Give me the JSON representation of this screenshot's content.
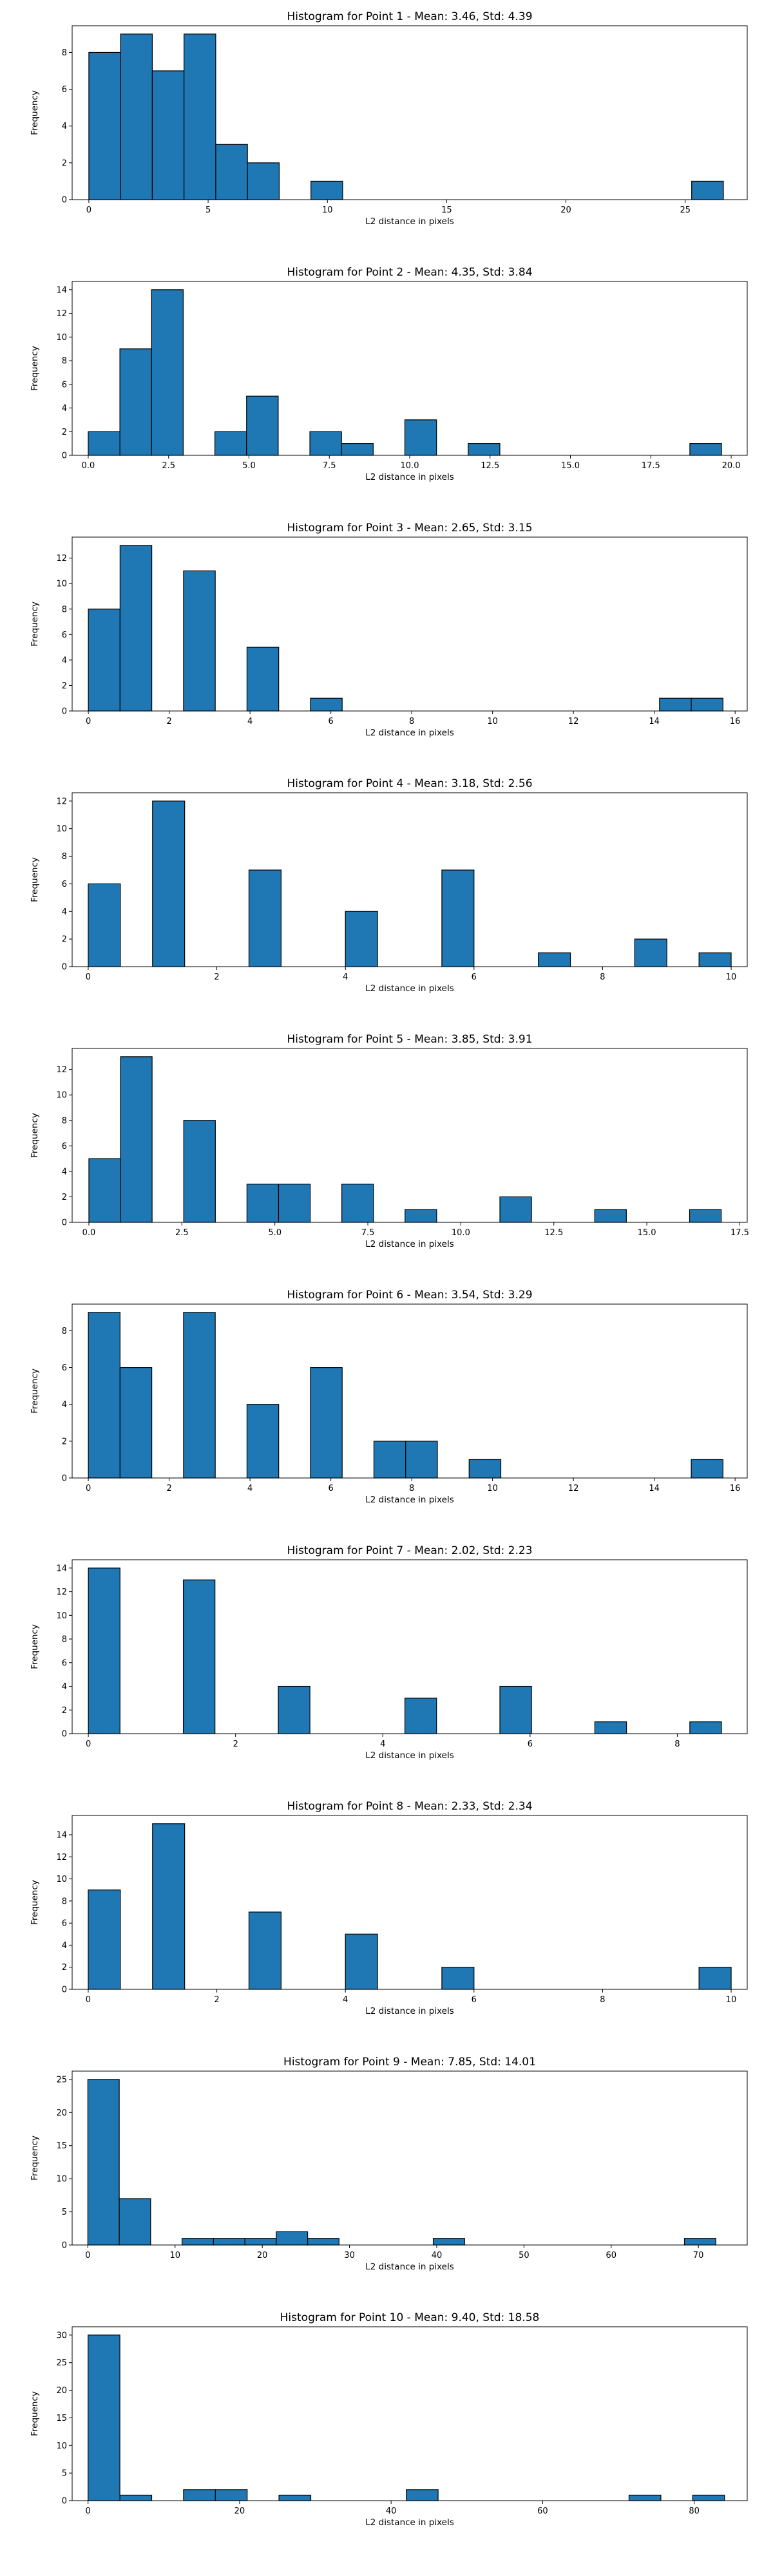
{
  "chart_data": [
    {
      "type": "bar",
      "title": "Histogram for Point 1 - Mean: 3.46, Std: 4.39",
      "xlabel": "L2 distance in pixels",
      "ylabel": "Frequency",
      "xlim": [
        -0.7,
        27.6
      ],
      "ylim": [
        0,
        9.45
      ],
      "xticks": [
        0,
        5,
        10,
        15,
        20,
        25
      ],
      "xtick_labels": [
        "0",
        "5",
        "10",
        "15",
        "20",
        "25"
      ],
      "yticks": [
        0,
        2,
        4,
        6,
        8
      ],
      "bar_width": 1.33,
      "bars": [
        {
          "x": 0.0,
          "count": 8
        },
        {
          "x": 1.33,
          "count": 9
        },
        {
          "x": 2.66,
          "count": 7
        },
        {
          "x": 3.99,
          "count": 9
        },
        {
          "x": 5.32,
          "count": 3
        },
        {
          "x": 6.65,
          "count": 2
        },
        {
          "x": 9.31,
          "count": 1
        },
        {
          "x": 25.27,
          "count": 1
        }
      ]
    },
    {
      "type": "bar",
      "title": "Histogram for Point 2 - Mean: 4.35, Std: 3.84",
      "xlabel": "L2 distance in pixels",
      "ylabel": "Frequency",
      "xlim": [
        -0.5,
        20.5
      ],
      "ylim": [
        0,
        14.7
      ],
      "xticks": [
        0,
        2.5,
        5,
        7.5,
        10,
        12.5,
        15,
        17.5,
        20
      ],
      "xtick_labels": [
        "0.0",
        "2.5",
        "5.0",
        "7.5",
        "10.0",
        "12.5",
        "15.0",
        "17.5",
        "20.0"
      ],
      "yticks": [
        0,
        2,
        4,
        6,
        8,
        10,
        12,
        14
      ],
      "bar_width": 0.985,
      "bars": [
        {
          "x": 0.0,
          "count": 2
        },
        {
          "x": 0.985,
          "count": 9
        },
        {
          "x": 1.97,
          "count": 14
        },
        {
          "x": 3.94,
          "count": 2
        },
        {
          "x": 4.925,
          "count": 5
        },
        {
          "x": 6.895,
          "count": 2
        },
        {
          "x": 7.88,
          "count": 1
        },
        {
          "x": 9.85,
          "count": 3
        },
        {
          "x": 11.82,
          "count": 1
        },
        {
          "x": 18.715,
          "count": 1
        }
      ]
    },
    {
      "type": "bar",
      "title": "Histogram for Point 3 - Mean: 2.65, Std: 3.15",
      "xlabel": "L2 distance in pixels",
      "ylabel": "Frequency",
      "xlim": [
        -0.4,
        16.3
      ],
      "ylim": [
        0,
        13.65
      ],
      "xticks": [
        0,
        2,
        4,
        6,
        8,
        10,
        12,
        14,
        16
      ],
      "xtick_labels": [
        "0",
        "2",
        "4",
        "6",
        "8",
        "10",
        "12",
        "14",
        "16"
      ],
      "yticks": [
        0,
        2,
        4,
        6,
        8,
        10,
        12
      ],
      "bar_width": 0.785,
      "bars": [
        {
          "x": 0.0,
          "count": 8
        },
        {
          "x": 0.785,
          "count": 13
        },
        {
          "x": 2.355,
          "count": 11
        },
        {
          "x": 3.925,
          "count": 5
        },
        {
          "x": 5.495,
          "count": 1
        },
        {
          "x": 14.13,
          "count": 1
        },
        {
          "x": 14.915,
          "count": 1
        }
      ]
    },
    {
      "type": "bar",
      "title": "Histogram for Point 4 - Mean: 3.18, Std: 2.56",
      "xlabel": "L2 distance in pixels",
      "ylabel": "Frequency",
      "xlim": [
        -0.25,
        10.25
      ],
      "ylim": [
        0,
        12.6
      ],
      "xticks": [
        0,
        2,
        4,
        6,
        8,
        10
      ],
      "xtick_labels": [
        "0",
        "2",
        "4",
        "6",
        "8",
        "10"
      ],
      "yticks": [
        0,
        2,
        4,
        6,
        8,
        10,
        12
      ],
      "bar_width": 0.5,
      "bars": [
        {
          "x": 0.0,
          "count": 6
        },
        {
          "x": 1.0,
          "count": 12
        },
        {
          "x": 2.5,
          "count": 7
        },
        {
          "x": 4.0,
          "count": 4
        },
        {
          "x": 5.5,
          "count": 7
        },
        {
          "x": 7.0,
          "count": 1
        },
        {
          "x": 8.5,
          "count": 2
        },
        {
          "x": 9.5,
          "count": 1
        }
      ]
    },
    {
      "type": "bar",
      "title": "Histogram for Point 5 - Mean: 3.85, Std: 3.91",
      "xlabel": "L2 distance in pixels",
      "ylabel": "Frequency",
      "xlim": [
        -0.45,
        17.7
      ],
      "ylim": [
        0,
        13.65
      ],
      "xticks": [
        0,
        2.5,
        5,
        7.5,
        10,
        12.5,
        15,
        17.5
      ],
      "xtick_labels": [
        "0.0",
        "2.5",
        "5.0",
        "7.5",
        "10.0",
        "12.5",
        "15.0",
        "17.5"
      ],
      "yticks": [
        0,
        2,
        4,
        6,
        8,
        10,
        12
      ],
      "bar_width": 0.85,
      "bars": [
        {
          "x": 0.0,
          "count": 5
        },
        {
          "x": 0.85,
          "count": 13
        },
        {
          "x": 2.55,
          "count": 8
        },
        {
          "x": 4.25,
          "count": 3
        },
        {
          "x": 5.1,
          "count": 3
        },
        {
          "x": 6.8,
          "count": 3
        },
        {
          "x": 8.5,
          "count": 1
        },
        {
          "x": 11.05,
          "count": 2
        },
        {
          "x": 13.6,
          "count": 1
        },
        {
          "x": 16.15,
          "count": 1
        }
      ]
    },
    {
      "type": "bar",
      "title": "Histogram for Point 6 - Mean: 3.54, Std: 3.29",
      "xlabel": "L2 distance in pixels",
      "ylabel": "Frequency",
      "xlim": [
        -0.4,
        16.3
      ],
      "ylim": [
        0,
        9.45
      ],
      "xticks": [
        0,
        2,
        4,
        6,
        8,
        10,
        12,
        14,
        16
      ],
      "xtick_labels": [
        "0",
        "2",
        "4",
        "6",
        "8",
        "10",
        "12",
        "14",
        "16"
      ],
      "yticks": [
        0,
        2,
        4,
        6,
        8
      ],
      "bar_width": 0.785,
      "bars": [
        {
          "x": 0.0,
          "count": 9
        },
        {
          "x": 0.785,
          "count": 6
        },
        {
          "x": 2.355,
          "count": 9
        },
        {
          "x": 3.925,
          "count": 4
        },
        {
          "x": 5.495,
          "count": 6
        },
        {
          "x": 7.065,
          "count": 2
        },
        {
          "x": 7.85,
          "count": 2
        },
        {
          "x": 9.42,
          "count": 1
        },
        {
          "x": 14.915,
          "count": 1
        }
      ]
    },
    {
      "type": "bar",
      "title": "Histogram for Point 7 - Mean: 2.02, Std: 2.23",
      "xlabel": "L2 distance in pixels",
      "ylabel": "Frequency",
      "xlim": [
        -0.22,
        8.95
      ],
      "ylim": [
        0,
        14.7
      ],
      "xticks": [
        0,
        2,
        4,
        6,
        8
      ],
      "xtick_labels": [
        "0",
        "2",
        "4",
        "6",
        "8"
      ],
      "yticks": [
        0,
        2,
        4,
        6,
        8,
        10,
        12,
        14
      ],
      "bar_width": 0.43,
      "bars": [
        {
          "x": 0.0,
          "count": 14
        },
        {
          "x": 1.29,
          "count": 13
        },
        {
          "x": 2.58,
          "count": 4
        },
        {
          "x": 4.3,
          "count": 3
        },
        {
          "x": 5.59,
          "count": 4
        },
        {
          "x": 6.88,
          "count": 1
        },
        {
          "x": 8.17,
          "count": 1
        }
      ]
    },
    {
      "type": "bar",
      "title": "Histogram for Point 8 - Mean: 2.33, Std: 2.34",
      "xlabel": "L2 distance in pixels",
      "ylabel": "Frequency",
      "xlim": [
        -0.25,
        10.25
      ],
      "ylim": [
        0,
        15.75
      ],
      "xticks": [
        0,
        2,
        4,
        6,
        8,
        10
      ],
      "xtick_labels": [
        "0",
        "2",
        "4",
        "6",
        "8",
        "10"
      ],
      "yticks": [
        0,
        2,
        4,
        6,
        8,
        10,
        12,
        14
      ],
      "bar_width": 0.5,
      "bars": [
        {
          "x": 0.0,
          "count": 9
        },
        {
          "x": 1.0,
          "count": 15
        },
        {
          "x": 2.5,
          "count": 7
        },
        {
          "x": 4.0,
          "count": 5
        },
        {
          "x": 5.5,
          "count": 2
        },
        {
          "x": 9.5,
          "count": 2
        }
      ]
    },
    {
      "type": "bar",
      "title": "Histogram for Point 9 - Mean: 7.85, Std: 14.01",
      "xlabel": "L2 distance in pixels",
      "ylabel": "Frequency",
      "xlim": [
        -1.8,
        75.6
      ],
      "ylim": [
        0,
        26.25
      ],
      "xticks": [
        0,
        10,
        20,
        30,
        40,
        50,
        60,
        70
      ],
      "xtick_labels": [
        "0",
        "10",
        "20",
        "30",
        "40",
        "50",
        "60",
        "70"
      ],
      "yticks": [
        0,
        5,
        10,
        15,
        20,
        25
      ],
      "bar_width": 3.6,
      "bars": [
        {
          "x": 0.0,
          "count": 25
        },
        {
          "x": 3.6,
          "count": 7
        },
        {
          "x": 10.8,
          "count": 1
        },
        {
          "x": 14.4,
          "count": 1
        },
        {
          "x": 18.0,
          "count": 1
        },
        {
          "x": 21.6,
          "count": 2
        },
        {
          "x": 25.2,
          "count": 1
        },
        {
          "x": 39.6,
          "count": 1
        },
        {
          "x": 68.4,
          "count": 1
        }
      ]
    },
    {
      "type": "bar",
      "title": "Histogram for Point 10 - Mean: 9.40, Std: 18.58",
      "xlabel": "L2 distance in pixels",
      "ylabel": "Frequency",
      "xlim": [
        -2.1,
        87.0
      ],
      "ylim": [
        0,
        31.5
      ],
      "xticks": [
        0,
        20,
        40,
        60,
        80
      ],
      "xtick_labels": [
        "0",
        "20",
        "40",
        "60",
        "80"
      ],
      "yticks": [
        0,
        5,
        10,
        15,
        20,
        25,
        30
      ],
      "bar_width": 4.2,
      "bars": [
        {
          "x": 0.0,
          "count": 30
        },
        {
          "x": 4.2,
          "count": 1
        },
        {
          "x": 12.6,
          "count": 2
        },
        {
          "x": 16.8,
          "count": 2
        },
        {
          "x": 25.2,
          "count": 1
        },
        {
          "x": 42.0,
          "count": 2
        },
        {
          "x": 71.4,
          "count": 1
        },
        {
          "x": 79.8,
          "count": 1
        }
      ]
    }
  ]
}
